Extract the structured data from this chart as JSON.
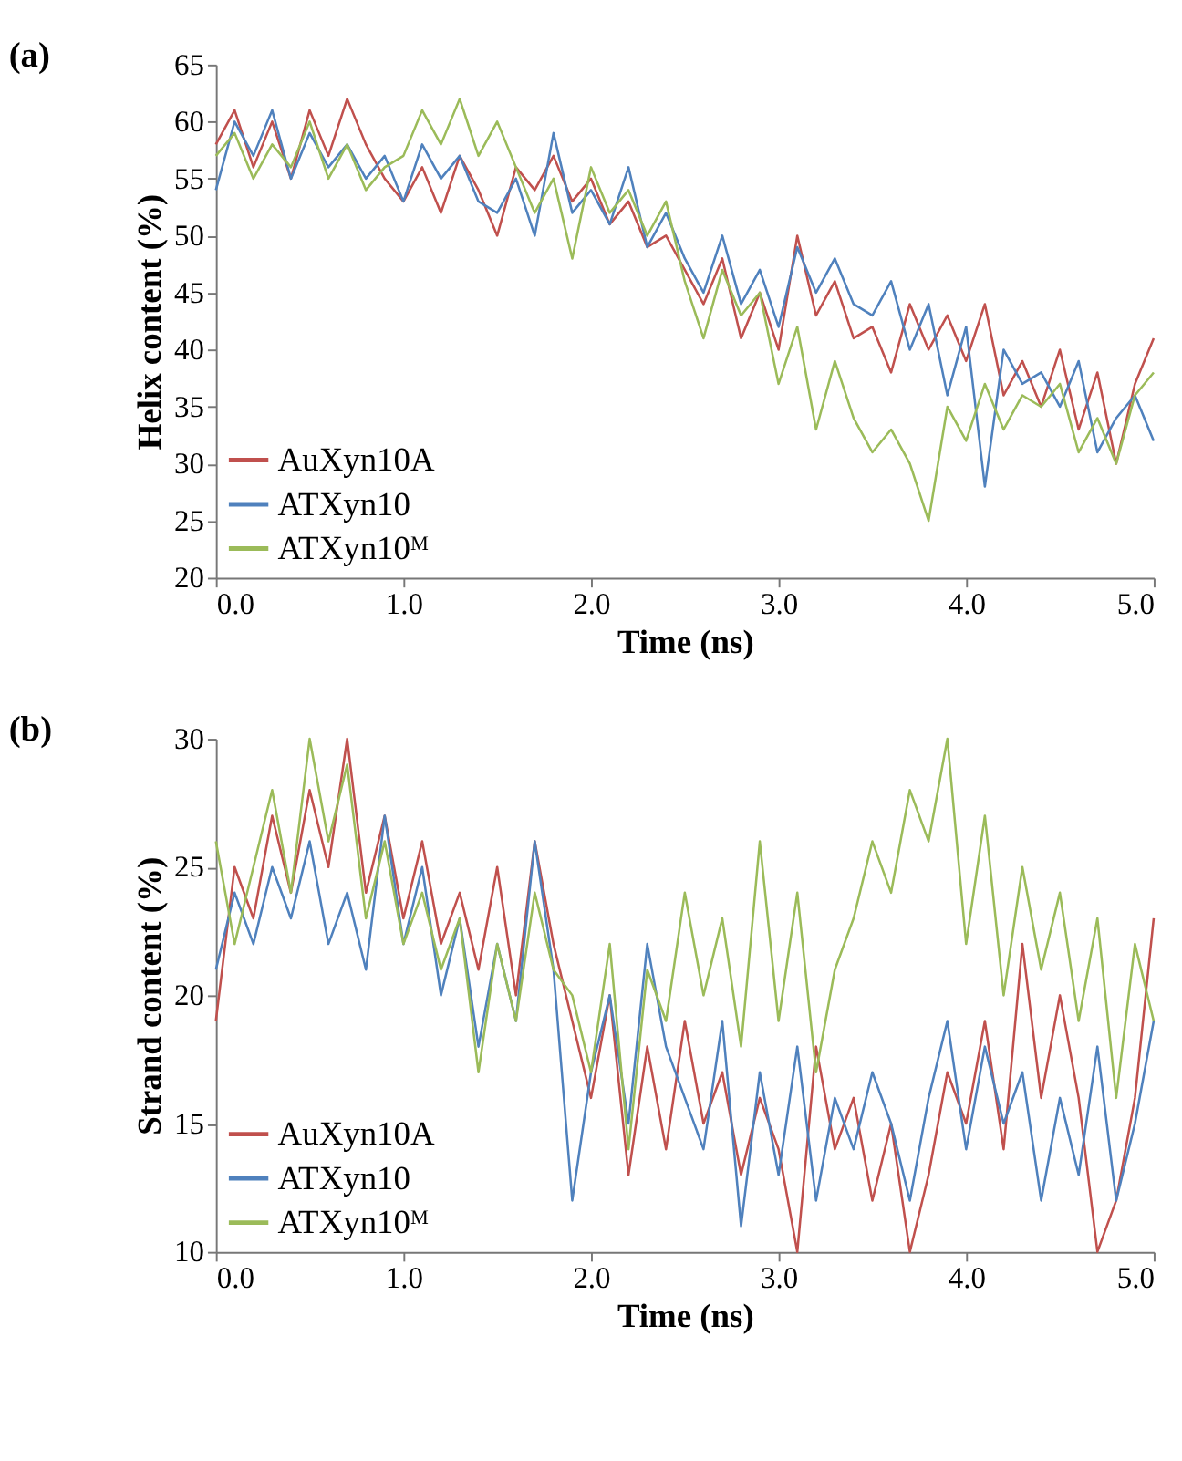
{
  "chart_data": [
    {
      "type": "line",
      "title": "(a)",
      "xlabel": "Time (ns)",
      "ylabel": "Helix content (%)",
      "x": [
        0.0,
        0.1,
        0.2,
        0.3,
        0.4,
        0.5,
        0.6,
        0.7,
        0.8,
        0.9,
        1.0,
        1.1,
        1.2,
        1.3,
        1.4,
        1.5,
        1.6,
        1.7,
        1.8,
        1.9,
        2.0,
        2.1,
        2.2,
        2.3,
        2.4,
        2.5,
        2.6,
        2.7,
        2.8,
        2.9,
        3.0,
        3.1,
        3.2,
        3.3,
        3.4,
        3.5,
        3.6,
        3.7,
        3.8,
        3.9,
        4.0,
        4.1,
        4.2,
        4.3,
        4.4,
        4.5,
        4.6,
        4.7,
        4.8,
        4.9,
        5.0
      ],
      "xlim": [
        0,
        5
      ],
      "xticks": [
        {
          "value": 0,
          "label": "0.0"
        },
        {
          "value": 1,
          "label": "1.0"
        },
        {
          "value": 2,
          "label": "2.0"
        },
        {
          "value": 3,
          "label": "3.0"
        },
        {
          "value": 4,
          "label": "4.0"
        },
        {
          "value": 5,
          "label": "5.0"
        }
      ],
      "ylim": [
        20,
        65
      ],
      "yticks": [
        20,
        25,
        30,
        35,
        40,
        45,
        50,
        55,
        60,
        65
      ],
      "grid": false,
      "legend": "bottom left",
      "line_style": "solid",
      "series": [
        {
          "name": "AuXyn10A",
          "color": "#c0504d",
          "values": [
            58,
            61,
            56,
            60,
            55,
            61,
            57,
            62,
            58,
            55,
            53,
            56,
            52,
            57,
            54,
            50,
            56,
            54,
            57,
            53,
            55,
            51,
            53,
            49,
            50,
            47,
            44,
            48,
            41,
            45,
            40,
            50,
            43,
            46,
            41,
            42,
            38,
            44,
            40,
            43,
            39,
            44,
            36,
            39,
            35,
            40,
            33,
            38,
            30,
            37,
            41
          ]
        },
        {
          "name": "ATXyn10",
          "color": "#4f81bd",
          "values": [
            54,
            60,
            57,
            61,
            55,
            59,
            56,
            58,
            55,
            57,
            53,
            58,
            55,
            57,
            53,
            52,
            55,
            50,
            59,
            52,
            54,
            51,
            56,
            49,
            52,
            48,
            45,
            50,
            44,
            47,
            42,
            49,
            45,
            48,
            44,
            43,
            46,
            40,
            44,
            36,
            42,
            28,
            40,
            37,
            38,
            35,
            39,
            31,
            34,
            36,
            32
          ]
        },
        {
          "name": "ATXyn10ᴹ",
          "color": "#9bbb59",
          "values": [
            57,
            59,
            55,
            58,
            56,
            60,
            55,
            58,
            54,
            56,
            57,
            61,
            58,
            62,
            57,
            60,
            56,
            52,
            55,
            48,
            56,
            52,
            54,
            50,
            53,
            46,
            41,
            47,
            43,
            45,
            37,
            42,
            33,
            39,
            34,
            31,
            33,
            30,
            25,
            35,
            32,
            37,
            33,
            36,
            35,
            37,
            31,
            34,
            30,
            36,
            38
          ]
        }
      ]
    },
    {
      "type": "line",
      "title": "(b)",
      "xlabel": "Time (ns)",
      "ylabel": "Strand content (%)",
      "x": [
        0.0,
        0.1,
        0.2,
        0.3,
        0.4,
        0.5,
        0.6,
        0.7,
        0.8,
        0.9,
        1.0,
        1.1,
        1.2,
        1.3,
        1.4,
        1.5,
        1.6,
        1.7,
        1.8,
        1.9,
        2.0,
        2.1,
        2.2,
        2.3,
        2.4,
        2.5,
        2.6,
        2.7,
        2.8,
        2.9,
        3.0,
        3.1,
        3.2,
        3.3,
        3.4,
        3.5,
        3.6,
        3.7,
        3.8,
        3.9,
        4.0,
        4.1,
        4.2,
        4.3,
        4.4,
        4.5,
        4.6,
        4.7,
        4.8,
        4.9,
        5.0
      ],
      "xlim": [
        0,
        5
      ],
      "xticks": [
        {
          "value": 0,
          "label": "0.0"
        },
        {
          "value": 1,
          "label": "1.0"
        },
        {
          "value": 2,
          "label": "2.0"
        },
        {
          "value": 3,
          "label": "3.0"
        },
        {
          "value": 4,
          "label": "4.0"
        },
        {
          "value": 5,
          "label": "5.0"
        }
      ],
      "ylim": [
        10,
        30
      ],
      "yticks": [
        10,
        15,
        20,
        25,
        30
      ],
      "grid": false,
      "legend": "bottom left",
      "line_style": "solid",
      "series": [
        {
          "name": "AuXyn10A",
          "color": "#c0504d",
          "values": [
            19,
            25,
            23,
            27,
            24,
            28,
            25,
            30,
            24,
            27,
            23,
            26,
            22,
            24,
            21,
            25,
            20,
            26,
            22,
            19,
            16,
            20,
            13,
            18,
            14,
            19,
            15,
            17,
            13,
            16,
            14,
            10,
            18,
            14,
            16,
            12,
            15,
            10,
            13,
            17,
            15,
            19,
            14,
            22,
            16,
            20,
            16,
            10,
            12,
            16,
            23
          ]
        },
        {
          "name": "ATXyn10",
          "color": "#4f81bd",
          "values": [
            21,
            24,
            22,
            25,
            23,
            26,
            22,
            24,
            21,
            27,
            22,
            25,
            20,
            23,
            18,
            22,
            19,
            26,
            21,
            12,
            17,
            20,
            15,
            22,
            18,
            16,
            14,
            19,
            11,
            17,
            13,
            18,
            12,
            16,
            14,
            17,
            15,
            12,
            16,
            19,
            14,
            18,
            15,
            17,
            12,
            16,
            13,
            18,
            12,
            15,
            19
          ]
        },
        {
          "name": "ATXyn10ᴹ",
          "color": "#9bbb59",
          "values": [
            26,
            22,
            25,
            28,
            24,
            30,
            26,
            29,
            23,
            26,
            22,
            24,
            21,
            23,
            17,
            22,
            19,
            24,
            21,
            20,
            17,
            22,
            14,
            21,
            19,
            24,
            20,
            23,
            18,
            26,
            19,
            24,
            17,
            21,
            23,
            26,
            24,
            28,
            26,
            30,
            22,
            27,
            20,
            25,
            21,
            24,
            19,
            23,
            16,
            22,
            19
          ]
        }
      ]
    }
  ]
}
